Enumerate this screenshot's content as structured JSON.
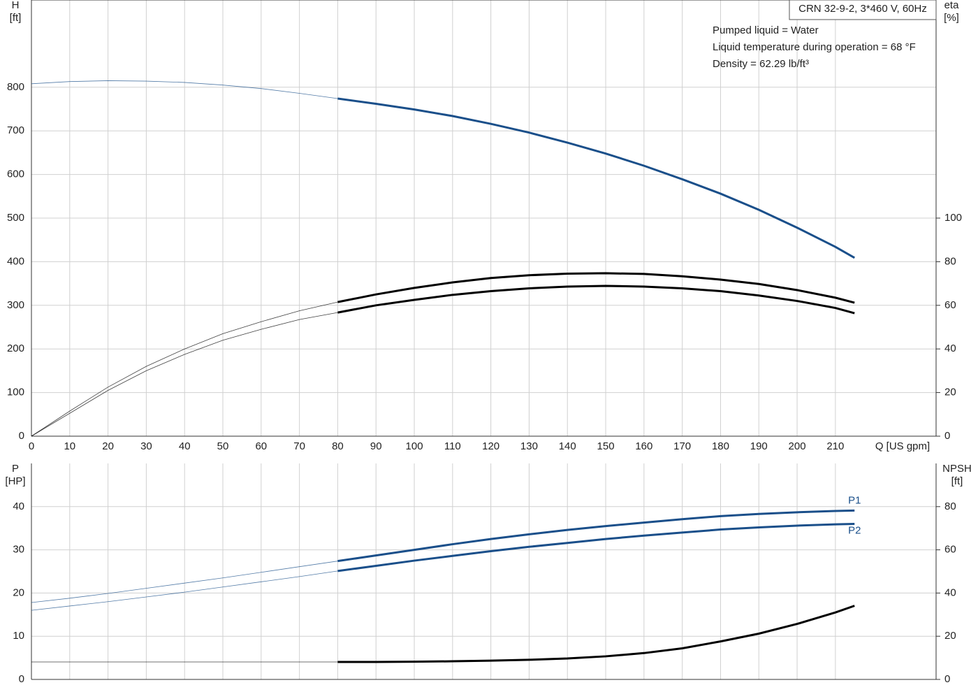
{
  "header": {
    "title": "CRN 32-9-2, 3*460 V, 60Hz",
    "notes": [
      "Pumped liquid = Water",
      "Liquid temperature during operation = 68 °F",
      "Density = 62.29 lb/ft³"
    ]
  },
  "chart_data": [
    {
      "type": "line",
      "ylabel": "H",
      "yunit": "[ft]",
      "y2label": "eta",
      "y2unit": "[%]",
      "xlabel": "Q [US gpm]",
      "operating_range_start": 80,
      "grid": true,
      "x": [
        0,
        10,
        20,
        30,
        40,
        50,
        60,
        70,
        80,
        90,
        100,
        110,
        120,
        130,
        140,
        150,
        160,
        170,
        180,
        190,
        200,
        210,
        215
      ],
      "xlim": [
        0,
        236.3
      ],
      "xticks": [
        0,
        10,
        20,
        30,
        40,
        50,
        60,
        70,
        80,
        90,
        100,
        110,
        120,
        130,
        140,
        150,
        160,
        170,
        180,
        190,
        200,
        210
      ],
      "ylim": [
        0,
        1000
      ],
      "yticks": [
        0,
        100,
        200,
        300,
        400,
        500,
        600,
        700,
        800
      ],
      "y2lim": [
        0,
        200
      ],
      "y2ticks": [
        0,
        20,
        40,
        60,
        80,
        100
      ],
      "series": [
        {
          "color": "#1a4f8a",
          "axis": "y",
          "values": [
            808,
            813,
            815,
            814,
            811,
            805,
            797,
            786,
            774,
            762,
            749,
            734,
            716,
            696,
            673,
            648,
            620,
            589,
            556,
            519,
            478,
            434,
            409
          ]
        },
        {
          "color": "#000000",
          "axis": "y2",
          "values": [
            0,
            11.5,
            22.5,
            32,
            40,
            47,
            52.5,
            57.5,
            61.5,
            65,
            68,
            70.5,
            72.5,
            73.8,
            74.5,
            74.7,
            74.4,
            73.3,
            71.8,
            69.8,
            67,
            63.5,
            61.2
          ]
        },
        {
          "color": "#000000",
          "axis": "y2",
          "values": [
            0,
            10.5,
            21,
            30,
            37.5,
            44,
            49,
            53.5,
            56.7,
            60,
            62.5,
            64.8,
            66.5,
            67.8,
            68.6,
            68.9,
            68.6,
            67.8,
            66.5,
            64.5,
            62,
            58.8,
            56.4
          ]
        }
      ]
    },
    {
      "type": "line",
      "ylabel": "P",
      "yunit": "[HP]",
      "y2label": "NPSH",
      "y2unit": "[ft]",
      "operating_range_start": 80,
      "grid": true,
      "x": [
        0,
        10,
        20,
        30,
        40,
        50,
        60,
        70,
        80,
        90,
        100,
        110,
        120,
        130,
        140,
        150,
        160,
        170,
        180,
        190,
        200,
        210,
        215
      ],
      "xlim": [
        0,
        236.3
      ],
      "xticks": [
        0,
        10,
        20,
        30,
        40,
        50,
        60,
        70,
        80,
        90,
        100,
        110,
        120,
        130,
        140,
        150,
        160,
        170,
        180,
        190,
        200,
        210
      ],
      "ylim": [
        0,
        50
      ],
      "yticks": [
        0,
        10,
        20,
        30,
        40
      ],
      "y2lim": [
        0,
        100
      ],
      "y2ticks": [
        0,
        20,
        40,
        60,
        80
      ],
      "series": [
        {
          "name": "P1",
          "color": "#1a4f8a",
          "axis": "y",
          "values": [
            17.8,
            18.8,
            19.9,
            21.1,
            22.3,
            23.5,
            24.8,
            26.1,
            27.4,
            28.7,
            30,
            31.3,
            32.5,
            33.6,
            34.6,
            35.5,
            36.3,
            37.1,
            37.8,
            38.3,
            38.7,
            39,
            39.1
          ]
        },
        {
          "name": "P2",
          "color": "#1a4f8a",
          "axis": "y",
          "values": [
            16.0,
            17.0,
            18.0,
            19.1,
            20.2,
            21.4,
            22.6,
            23.8,
            25.1,
            26.3,
            27.5,
            28.6,
            29.7,
            30.7,
            31.6,
            32.5,
            33.3,
            34.0,
            34.7,
            35.2,
            35.6,
            35.9,
            36.0
          ]
        },
        {
          "color": "#000000",
          "axis": "y2",
          "values": [
            8.1,
            8.1,
            8.1,
            8.1,
            8.1,
            8.1,
            8.1,
            8.1,
            8.1,
            8.1,
            8.2,
            8.4,
            8.7,
            9.1,
            9.7,
            10.7,
            12.2,
            14.4,
            17.6,
            21.2,
            25.7,
            31.0,
            34.1
          ]
        }
      ]
    }
  ]
}
